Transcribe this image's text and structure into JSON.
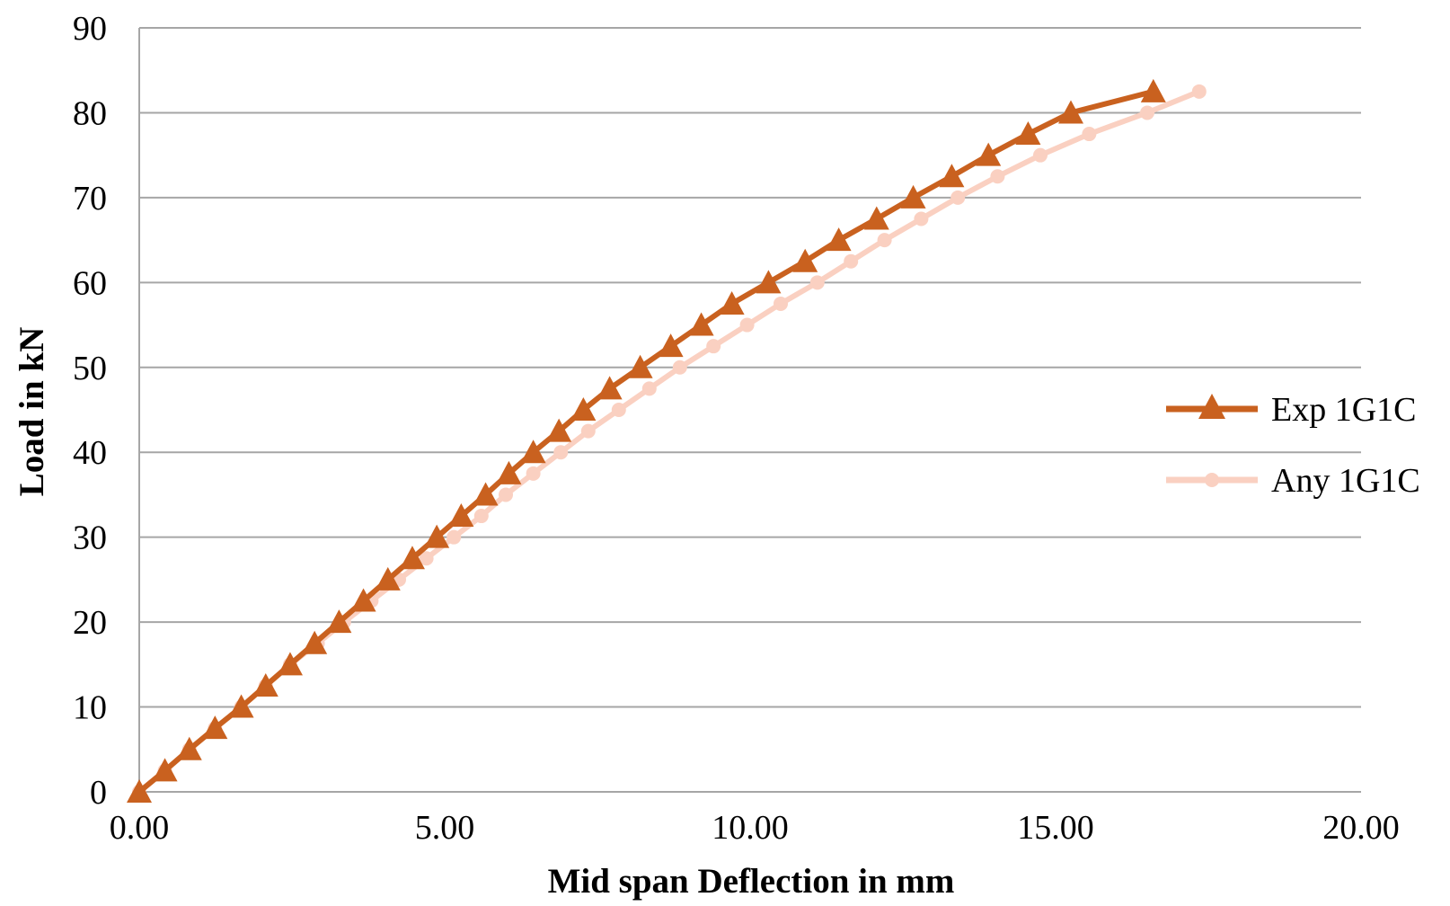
{
  "chart_data": {
    "type": "line",
    "title": "",
    "xlabel": "Mid span Deflection in mm",
    "ylabel": "Load in kN",
    "xlim": [
      0,
      20
    ],
    "ylim": [
      0,
      90
    ],
    "x_ticks": [
      "0.00",
      "5.00",
      "10.00",
      "15.00",
      "20.00"
    ],
    "y_ticks": [
      "0",
      "10",
      "20",
      "30",
      "40",
      "50",
      "60",
      "70",
      "80",
      "90"
    ],
    "grid": "horizontal",
    "legend_position": "right",
    "series": [
      {
        "name": "Exp 1G1C",
        "color": "#C9611F",
        "marker": "triangle",
        "points": [
          [
            0.0,
            0.0
          ],
          [
            0.42,
            2.5
          ],
          [
            0.82,
            5.0
          ],
          [
            1.24,
            7.5
          ],
          [
            1.67,
            10.0
          ],
          [
            2.07,
            12.5
          ],
          [
            2.47,
            15.0
          ],
          [
            2.87,
            17.5
          ],
          [
            3.27,
            20.0
          ],
          [
            3.67,
            22.5
          ],
          [
            4.07,
            25.0
          ],
          [
            4.47,
            27.5
          ],
          [
            4.87,
            30.0
          ],
          [
            5.27,
            32.5
          ],
          [
            5.67,
            35.0
          ],
          [
            6.05,
            37.5
          ],
          [
            6.45,
            40.0
          ],
          [
            6.87,
            42.5
          ],
          [
            7.27,
            45.0
          ],
          [
            7.7,
            47.5
          ],
          [
            8.2,
            50.0
          ],
          [
            8.7,
            52.5
          ],
          [
            9.2,
            55.0
          ],
          [
            9.7,
            57.5
          ],
          [
            10.3,
            60.0
          ],
          [
            10.9,
            62.5
          ],
          [
            11.45,
            65.0
          ],
          [
            12.07,
            67.5
          ],
          [
            12.67,
            70.0
          ],
          [
            13.3,
            72.5
          ],
          [
            13.9,
            75.0
          ],
          [
            14.55,
            77.5
          ],
          [
            15.25,
            80.0
          ],
          [
            16.6,
            82.5
          ]
        ]
      },
      {
        "name": "Any 1G1C",
        "color": "#FAD0C1",
        "marker": "circle",
        "points": [
          [
            0.0,
            0.0
          ],
          [
            0.42,
            2.5
          ],
          [
            0.82,
            5.0
          ],
          [
            1.24,
            7.5
          ],
          [
            1.67,
            10.0
          ],
          [
            2.07,
            12.5
          ],
          [
            2.47,
            15.0
          ],
          [
            2.92,
            17.5
          ],
          [
            3.35,
            20.0
          ],
          [
            3.8,
            22.5
          ],
          [
            4.25,
            25.0
          ],
          [
            4.7,
            27.5
          ],
          [
            5.15,
            30.0
          ],
          [
            5.6,
            32.5
          ],
          [
            6.0,
            35.0
          ],
          [
            6.45,
            37.5
          ],
          [
            6.9,
            40.0
          ],
          [
            7.35,
            42.5
          ],
          [
            7.85,
            45.0
          ],
          [
            8.35,
            47.5
          ],
          [
            8.85,
            50.0
          ],
          [
            9.4,
            52.5
          ],
          [
            9.95,
            55.0
          ],
          [
            10.5,
            57.5
          ],
          [
            11.1,
            60.0
          ],
          [
            11.65,
            62.5
          ],
          [
            12.2,
            65.0
          ],
          [
            12.8,
            67.5
          ],
          [
            13.4,
            70.0
          ],
          [
            14.05,
            72.5
          ],
          [
            14.75,
            75.0
          ],
          [
            15.55,
            77.5
          ],
          [
            16.5,
            80.0
          ],
          [
            17.35,
            82.5
          ]
        ]
      }
    ]
  }
}
